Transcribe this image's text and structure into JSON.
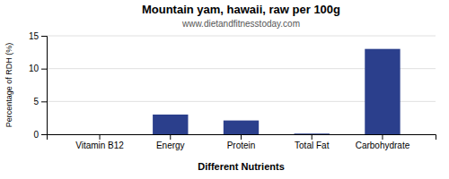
{
  "chart_data": {
    "type": "bar",
    "title": "Mountain yam, hawaii, raw per 100g",
    "subtitle": "www.dietandfitnesstoday.com",
    "xlabel": "Different Nutrients",
    "ylabel": "Percentage of RDH (%)",
    "categories": [
      "Vitamin B12",
      "Energy",
      "Protein",
      "Total Fat",
      "Carbohydrate"
    ],
    "values": [
      0,
      3.0,
      2.1,
      0.1,
      13.0
    ],
    "color": "#2b3f8c",
    "ylim": [
      0,
      15
    ],
    "yticks": [
      0,
      5,
      10,
      15
    ],
    "grid": true
  }
}
